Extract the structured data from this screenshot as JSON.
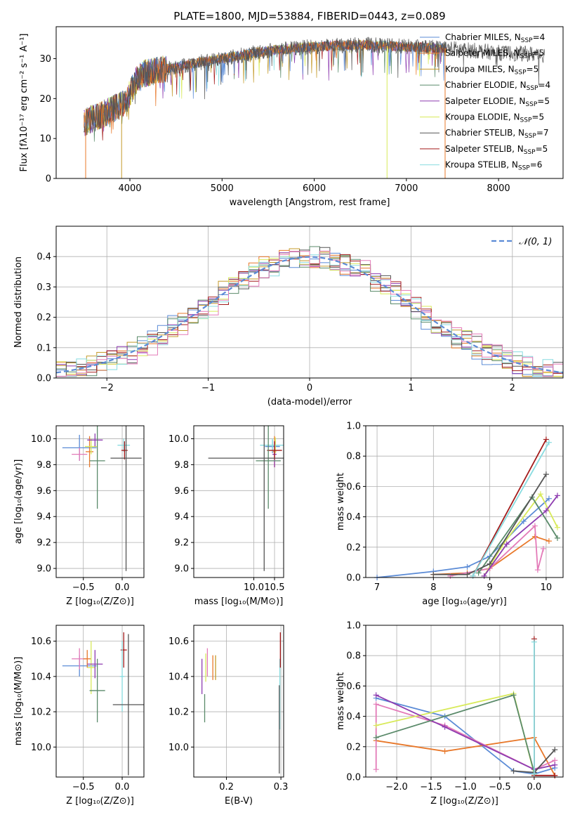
{
  "colors": {
    "chab_miles": "#5b8bd6",
    "salp_miles": "#e8782a",
    "krou_miles": "#c49a2a",
    "chab_elodie": "#5a8a6a",
    "salp_elodie": "#8e3cb0",
    "krou_elodie": "#d8ea5a",
    "chab_stelib": "#555555",
    "salp_stelib": "#a31a1a",
    "krou_stelib": "#88dce0",
    "pink": "#e37ab8",
    "normal_curve": "#5b8bd6"
  },
  "chart_data": [
    {
      "id": "spectrum",
      "type": "line",
      "title": "PLATE=1800, MJD=53884, FIBERID=0443, z=0.089",
      "xlabel": "wavelength [Angstrom, rest frame]",
      "ylabel": "Flux [fλ10⁻¹⁷ erg cm⁻² s⁻¹ A⁻¹]",
      "xlim": [
        3200,
        8700
      ],
      "ylim": [
        0,
        38
      ],
      "xticks": [
        "4000",
        "5000",
        "6000",
        "7000",
        "8000"
      ],
      "xtick_values": [
        4000,
        5000,
        6000,
        7000,
        8000
      ],
      "yticks": [
        "0",
        "10",
        "20",
        "30"
      ],
      "ytick_values": [
        0,
        10,
        20,
        30
      ],
      "legend_position": "top-right",
      "series": [
        {
          "name": "Chabrier MILES, N",
          "sub": "SSP",
          "suffix": "=4",
          "color_key": "chab_miles"
        },
        {
          "name": "Salpeter MILES, N",
          "sub": "SSP",
          "suffix": "=5",
          "color_key": "salp_miles"
        },
        {
          "name": "Kroupa MILES, N",
          "sub": "SSP",
          "suffix": "=5",
          "color_key": "krou_miles"
        },
        {
          "name": "Chabrier ELODIE, N",
          "sub": "SSP",
          "suffix": "=4",
          "color_key": "chab_elodie"
        },
        {
          "name": "Salpeter ELODIE, N",
          "sub": "SSP",
          "suffix": "=5",
          "color_key": "salp_elodie"
        },
        {
          "name": "Kroupa ELODIE, N",
          "sub": "SSP",
          "suffix": "=5",
          "color_key": "krou_elodie"
        },
        {
          "name": "Chabrier STELIB, N",
          "sub": "SSP",
          "suffix": "=7",
          "color_key": "chab_stelib"
        },
        {
          "name": "Salpeter STELIB, N",
          "sub": "SSP",
          "suffix": "=5",
          "color_key": "salp_stelib"
        },
        {
          "name": "Kroupa STELIB, N",
          "sub": "SSP",
          "suffix": "=6",
          "color_key": "krou_stelib"
        }
      ],
      "continuum": [
        [
          3500,
          14
        ],
        [
          3700,
          16
        ],
        [
          3950,
          19
        ],
        [
          4100,
          26
        ],
        [
          4500,
          28
        ],
        [
          5000,
          30
        ],
        [
          5500,
          32
        ],
        [
          6000,
          33
        ],
        [
          6500,
          33.5
        ],
        [
          7000,
          33
        ],
        [
          7500,
          32.5
        ],
        [
          8000,
          31.5
        ],
        [
          8500,
          31
        ]
      ],
      "xrange_models": [
        3500,
        7430
      ],
      "xrange_data": [
        3500,
        8500
      ],
      "dropouts": [
        {
          "x": 3520,
          "color_key": "salp_miles"
        },
        {
          "x": 3910,
          "color_key": "krou_miles"
        },
        {
          "x": 6790,
          "color_key": "krou_elodie"
        },
        {
          "x": 7420,
          "color_key": "salp_miles"
        }
      ]
    },
    {
      "id": "residual_histogram",
      "type": "bar",
      "xlabel": "(data-model)/error",
      "ylabel": "Normed distribution",
      "xlim": [
        -2.5,
        2.5
      ],
      "ylim": [
        0,
        0.5
      ],
      "xticks": [
        "−2",
        "−1",
        "0",
        "1",
        "2"
      ],
      "xtick_values": [
        -2,
        -1,
        0,
        1,
        2
      ],
      "yticks": [
        "0.0",
        "0.1",
        "0.2",
        "0.3",
        "0.4"
      ],
      "ytick_values": [
        0,
        0.1,
        0.2,
        0.3,
        0.4
      ],
      "grid": true,
      "bin_width": 0.1,
      "reference_curve": {
        "label": "𝒩(0, 1)",
        "mean": 0,
        "sigma": 1,
        "style": "dashed"
      },
      "histogram_colors": [
        "chab_miles",
        "salp_miles",
        "krou_miles",
        "chab_elodie",
        "salp_elodie",
        "krou_elodie",
        "chab_stelib",
        "salp_stelib",
        "krou_stelib",
        "pink"
      ]
    },
    {
      "id": "age_vs_Z",
      "type": "scatter",
      "xlabel": "Z [log₁₀(Z/Z⊙)]",
      "ylabel": "age  [log₁₀(age/yr)]",
      "xlim": [
        -0.85,
        0.28
      ],
      "ylim": [
        8.93,
        10.1
      ],
      "xticks": [
        "−0.5",
        "0.0"
      ],
      "xtick_values": [
        -0.5,
        0
      ],
      "yticks": [
        "9.0",
        "9.2",
        "9.4",
        "9.6",
        "9.8",
        "10.0"
      ],
      "ytick_values": [
        9.0,
        9.2,
        9.4,
        9.6,
        9.8,
        10.0
      ],
      "grid": true,
      "points": [
        {
          "x": -0.55,
          "y": 9.93,
          "xerr": 0.22,
          "yerr": 0.1,
          "color_key": "chab_miles"
        },
        {
          "x": -0.42,
          "y": 9.9,
          "xerr": 0.05,
          "yerr": 0.12,
          "color_key": "salp_miles"
        },
        {
          "x": -0.55,
          "y": 9.88,
          "xerr": 0.1,
          "yerr": 0.05,
          "color_key": "pink"
        },
        {
          "x": -0.4,
          "y": 9.94,
          "xerr": 0.08,
          "yerr": 0.06,
          "color_key": "krou_elodie"
        },
        {
          "x": -0.35,
          "y": 9.99,
          "xerr": 0.1,
          "yerr": 0.05,
          "color_key": "salp_elodie"
        },
        {
          "x": -0.32,
          "y": 9.83,
          "xerr": 0.1,
          "yerr": 0.37,
          "color_key": "chab_elodie"
        },
        {
          "x": 0.02,
          "y": 9.95,
          "xerr": 0.08,
          "yerr": 0.05,
          "color_key": "krou_stelib"
        },
        {
          "x": 0.03,
          "y": 9.91,
          "xerr": 0.04,
          "yerr": 0.07,
          "color_key": "salp_stelib"
        },
        {
          "x": 0.05,
          "y": 9.85,
          "xerr": 0.2,
          "yerr": 0.87,
          "color_key": "chab_stelib"
        }
      ]
    },
    {
      "id": "age_vs_mass",
      "type": "scatter",
      "xlabel": "mass [log₁₀(M/M⊙)]",
      "ylabel": "",
      "xlim": [
        8.55,
        10.72
      ],
      "ylim": [
        8.93,
        10.1
      ],
      "xticks": [
        "10.0",
        "10.5"
      ],
      "xtick_values": [
        10.0,
        10.5
      ],
      "yticks": [
        "9.0",
        "9.2",
        "9.4",
        "9.6",
        "9.8",
        "10.0"
      ],
      "ytick_values": [
        9.0,
        9.2,
        9.4,
        9.6,
        9.8,
        10.0
      ],
      "grid": true,
      "points": [
        {
          "x": 10.45,
          "y": 9.94,
          "xerr": 0.18,
          "yerr": 0.05,
          "color_key": "chab_miles"
        },
        {
          "x": 10.5,
          "y": 9.9,
          "xerr": 0.04,
          "yerr": 0.12,
          "color_key": "salp_miles"
        },
        {
          "x": 10.52,
          "y": 9.95,
          "xerr": 0.08,
          "yerr": 0.06,
          "color_key": "krou_elodie"
        },
        {
          "x": 10.5,
          "y": 9.88,
          "xerr": 0.05,
          "yerr": 0.1,
          "color_key": "salp_elodie"
        },
        {
          "x": 10.45,
          "y": 9.95,
          "xerr": 0.3,
          "yerr": 0.05,
          "color_key": "krou_stelib"
        },
        {
          "x": 10.5,
          "y": 9.91,
          "xerr": 0.18,
          "yerr": 0.07,
          "color_key": "salp_stelib"
        },
        {
          "x": 10.35,
          "y": 9.83,
          "xerr": 0.3,
          "yerr": 0.37,
          "color_key": "chab_elodie"
        },
        {
          "x": 10.25,
          "y": 9.85,
          "xerr": 1.35,
          "yerr": 0.87,
          "color_key": "chab_stelib"
        }
      ]
    },
    {
      "id": "weight_vs_age",
      "type": "line",
      "xlabel": "age  [log₁₀(age/yr)]",
      "ylabel": "mass weight",
      "xlim": [
        6.8,
        10.3
      ],
      "ylim": [
        0,
        1
      ],
      "xticks": [
        "7",
        "8",
        "9",
        "10"
      ],
      "xtick_values": [
        7,
        8,
        9,
        10
      ],
      "yticks": [
        "0.0",
        "0.2",
        "0.4",
        "0.6",
        "0.8",
        "1.0"
      ],
      "ytick_values": [
        0,
        0.2,
        0.4,
        0.6,
        0.8,
        1.0
      ],
      "grid": true,
      "series": [
        {
          "color_key": "chab_miles",
          "points": [
            [
              7,
              0
            ],
            [
              8,
              0.04
            ],
            [
              8.6,
              0.07
            ],
            [
              9,
              0.14
            ],
            [
              9.6,
              0.37
            ],
            [
              10.05,
              0.52
            ]
          ]
        },
        {
          "color_key": "salp_miles",
          "points": [
            [
              8,
              0.02
            ],
            [
              8.6,
              0.03
            ],
            [
              9,
              0.06
            ],
            [
              9.8,
              0.27
            ],
            [
              10.05,
              0.24
            ]
          ]
        },
        {
          "color_key": "pink",
          "points": [
            [
              8.3,
              0.01
            ],
            [
              9,
              0.06
            ],
            [
              9.8,
              0.34
            ],
            [
              9.85,
              0.05
            ],
            [
              9.95,
              0.19
            ]
          ]
        },
        {
          "color_key": "krou_elodie",
          "points": [
            [
              8.9,
              0.01
            ],
            [
              9.2,
              0.2
            ],
            [
              9.9,
              0.55
            ],
            [
              10.2,
              0.33
            ]
          ]
        },
        {
          "color_key": "salp_elodie",
          "points": [
            [
              8.9,
              0.01
            ],
            [
              9.3,
              0.22
            ],
            [
              10.0,
              0.44
            ],
            [
              10.2,
              0.54
            ]
          ]
        },
        {
          "color_key": "chab_elodie",
          "points": [
            [
              8.8,
              0.03
            ],
            [
              9.75,
              0.53
            ],
            [
              10.2,
              0.26
            ]
          ]
        },
        {
          "color_key": "chab_stelib",
          "points": [
            [
              8,
              0.02
            ],
            [
              8.6,
              0.02
            ],
            [
              9,
              0.09
            ],
            [
              10,
              0.68
            ]
          ]
        },
        {
          "color_key": "salp_stelib",
          "points": [
            [
              8.7,
              0.01
            ],
            [
              10,
              0.91
            ]
          ]
        },
        {
          "color_key": "krou_stelib",
          "points": [
            [
              8.7,
              0.01
            ],
            [
              10.05,
              0.89
            ]
          ]
        }
      ]
    },
    {
      "id": "mass_vs_Z",
      "type": "scatter",
      "xlabel": "Z [log₁₀(Z/Z⊙)]",
      "ylabel": "mass [log₁₀(M/M⊙)]",
      "xlim": [
        -0.85,
        0.28
      ],
      "ylim": [
        9.83,
        10.69
      ],
      "xticks": [
        "−0.5",
        "0.0"
      ],
      "xtick_values": [
        -0.5,
        0
      ],
      "yticks": [
        "10.0",
        "10.2",
        "10.4",
        "10.6"
      ],
      "ytick_values": [
        10.0,
        10.2,
        10.4,
        10.6
      ],
      "grid": true,
      "points": [
        {
          "x": -0.55,
          "y": 10.46,
          "xerr": 0.22,
          "yerr": 0.06,
          "color_key": "chab_miles"
        },
        {
          "x": -0.55,
          "y": 10.5,
          "xerr": 0.1,
          "yerr": 0.06,
          "color_key": "pink"
        },
        {
          "x": -0.45,
          "y": 10.5,
          "xerr": 0.05,
          "yerr": 0.05,
          "color_key": "salp_miles"
        },
        {
          "x": -0.4,
          "y": 10.45,
          "xerr": 0.05,
          "yerr": 0.15,
          "color_key": "krou_elodie"
        },
        {
          "x": -0.35,
          "y": 10.47,
          "xerr": 0.1,
          "yerr": 0.08,
          "color_key": "salp_elodie"
        },
        {
          "x": -0.32,
          "y": 10.32,
          "xerr": 0.1,
          "yerr": 0.18,
          "color_key": "chab_elodie"
        },
        {
          "x": 0.02,
          "y": 10.55,
          "xerr": 0.04,
          "yerr": 0.1,
          "color_key": "salp_stelib"
        },
        {
          "x": 0.0,
          "y": 10.4,
          "xerr": 0.03,
          "yerr": 0.2,
          "color_key": "krou_stelib"
        },
        {
          "x": 0.08,
          "y": 10.24,
          "xerr": 0.2,
          "yerr": 0.4,
          "color_key": "chab_stelib"
        }
      ]
    },
    {
      "id": "mass_vs_EBV",
      "type": "scatter",
      "xlabel": "E(B-V)",
      "ylabel": "",
      "xlim": [
        0.14,
        0.305
      ],
      "ylim": [
        9.83,
        10.69
      ],
      "xticks": [
        "0.2",
        "0.3"
      ],
      "xtick_values": [
        0.2,
        0.3
      ],
      "yticks": [
        "10.0",
        "10.2",
        "10.4",
        "10.6"
      ],
      "ytick_values": [
        10.0,
        10.2,
        10.4,
        10.6
      ],
      "grid": true,
      "points": [
        {
          "x": 0.155,
          "y": 10.4,
          "xerr": 0,
          "yerr": 0.1,
          "color_key": "salp_elodie"
        },
        {
          "x": 0.16,
          "y": 10.22,
          "xerr": 0,
          "yerr": 0.08,
          "color_key": "chab_elodie"
        },
        {
          "x": 0.162,
          "y": 10.45,
          "xerr": 0,
          "yerr": 0.08,
          "color_key": "krou_elodie"
        },
        {
          "x": 0.165,
          "y": 10.48,
          "xerr": 0,
          "yerr": 0.08,
          "color_key": "pink"
        },
        {
          "x": 0.175,
          "y": 10.45,
          "xerr": 0,
          "yerr": 0.07,
          "color_key": "salp_miles"
        },
        {
          "x": 0.18,
          "y": 10.45,
          "xerr": 0,
          "yerr": 0.07,
          "color_key": "krou_miles"
        },
        {
          "x": 0.298,
          "y": 10.3,
          "xerr": 0,
          "yerr": 0.2,
          "color_key": "krou_stelib"
        },
        {
          "x": 0.299,
          "y": 10.55,
          "xerr": 0,
          "yerr": 0.1,
          "color_key": "salp_stelib"
        },
        {
          "x": 0.297,
          "y": 10.1,
          "xerr": 0,
          "yerr": 0.25,
          "color_key": "chab_stelib"
        }
      ]
    },
    {
      "id": "weight_vs_Z",
      "type": "line",
      "xlabel": "Z [log₁₀(Z/Z⊙)]",
      "ylabel": "mass weight",
      "xlim": [
        -2.45,
        0.42
      ],
      "ylim": [
        0,
        1
      ],
      "xticks": [
        "−2.0",
        "−1.5",
        "−1.0",
        "−0.5",
        "0.0"
      ],
      "xtick_values": [
        -2.0,
        -1.5,
        -1.0,
        -0.5,
        0
      ],
      "yticks": [
        "0.0",
        "0.2",
        "0.4",
        "0.6",
        "0.8",
        "1.0"
      ],
      "ytick_values": [
        0,
        0.2,
        0.4,
        0.6,
        0.8,
        1.0
      ],
      "grid": true,
      "series": [
        {
          "color_key": "chab_miles",
          "points": [
            [
              -2.3,
              0.52
            ],
            [
              -1.3,
              0.4
            ],
            [
              -0.3,
              0.04
            ],
            [
              0,
              0.02
            ],
            [
              0.3,
              0.06
            ]
          ]
        },
        {
          "color_key": "salp_miles",
          "points": [
            [
              -2.3,
              0.24
            ],
            [
              -1.3,
              0.17
            ],
            [
              0,
              0.26
            ],
            [
              0.3,
              0.01
            ]
          ]
        },
        {
          "color_key": "pink",
          "points": [
            [
              -2.3,
              0.05
            ],
            [
              -2.3,
              0.48
            ],
            [
              -1.3,
              0.34
            ],
            [
              0,
              0.05
            ],
            [
              0.3,
              0.11
            ]
          ]
        },
        {
          "color_key": "krou_elodie",
          "points": [
            [
              -2.3,
              0.34
            ],
            [
              -0.3,
              0.55
            ],
            [
              0,
              0.02
            ]
          ]
        },
        {
          "color_key": "salp_elodie",
          "points": [
            [
              -2.3,
              0.54
            ],
            [
              -1.3,
              0.33
            ],
            [
              0,
              0.05
            ],
            [
              0.3,
              0.08
            ]
          ]
        },
        {
          "color_key": "chab_elodie",
          "points": [
            [
              -2.3,
              0.26
            ],
            [
              -0.3,
              0.54
            ],
            [
              0,
              0.03
            ]
          ]
        },
        {
          "color_key": "chab_stelib",
          "points": [
            [
              -0.3,
              0.04
            ],
            [
              0,
              0.03
            ],
            [
              0.3,
              0.18
            ]
          ]
        },
        {
          "color_key": "salp_stelib",
          "points": [
            [
              0,
              0.91
            ],
            [
              0,
              0.01
            ],
            [
              0.3,
              0.01
            ]
          ]
        },
        {
          "color_key": "krou_stelib",
          "points": [
            [
              0,
              0.89
            ],
            [
              0,
              0.02
            ]
          ]
        }
      ]
    }
  ]
}
